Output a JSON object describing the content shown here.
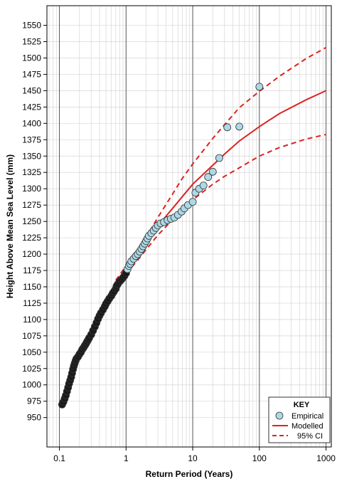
{
  "chart_data": {
    "type": "scatter",
    "xlabel": "Return Period (Years)",
    "ylabel": "Height Above Mean Sea Level (mm)",
    "x_scale": "log",
    "xlim": [
      0.065,
      1200
    ],
    "ylim": [
      905,
      1580
    ],
    "x_ticks": [
      0.1,
      1,
      10,
      100,
      1000
    ],
    "x_tick_labels": [
      "0.1",
      "1",
      "10",
      "100",
      "1000"
    ],
    "y_ticks": [
      950,
      975,
      1000,
      1025,
      1050,
      1075,
      1100,
      1125,
      1150,
      1175,
      1200,
      1225,
      1250,
      1275,
      1300,
      1325,
      1350,
      1375,
      1400,
      1425,
      1450,
      1475,
      1500,
      1525,
      1550
    ],
    "grid": true,
    "legend": {
      "title": "KEY",
      "position": "bottom-right",
      "entries": [
        {
          "label": "Empirical",
          "style": "circle",
          "color": "#add8e6"
        },
        {
          "label": "Modelled",
          "style": "solid",
          "color": "#dd2222"
        },
        {
          "label": "95% CI",
          "style": "dashed",
          "color": "#dd2222"
        }
      ]
    },
    "series": [
      {
        "name": "Empirical",
        "style": "points",
        "x": [
          0.11,
          0.115,
          0.12,
          0.125,
          0.13,
          0.135,
          0.14,
          0.145,
          0.15,
          0.155,
          0.16,
          0.165,
          0.17,
          0.175,
          0.18,
          0.19,
          0.2,
          0.21,
          0.22,
          0.23,
          0.24,
          0.25,
          0.26,
          0.27,
          0.28,
          0.3,
          0.32,
          0.34,
          0.36,
          0.38,
          0.4,
          0.42,
          0.45,
          0.48,
          0.5,
          0.53,
          0.56,
          0.6,
          0.63,
          0.66,
          0.7,
          0.72,
          0.75,
          0.8,
          0.85,
          0.9,
          0.95,
          1.0,
          1.05,
          1.1,
          1.15,
          1.2,
          1.3,
          1.4,
          1.5,
          1.6,
          1.7,
          1.8,
          1.9,
          2.0,
          2.1,
          2.2,
          2.4,
          2.6,
          2.8,
          3.0,
          3.3,
          3.7,
          4.2,
          4.7,
          5.3,
          6.0,
          6.8,
          7.5,
          8.5,
          10.0,
          11.0,
          12.5,
          14.5,
          17.0,
          20.0,
          25.0,
          33.0,
          50.0,
          100.0
        ],
        "y": [
          970,
          974,
          979,
          984,
          990,
          996,
          1002,
          1007,
          1012,
          1018,
          1024,
          1029,
          1033,
          1037,
          1040,
          1043,
          1047,
          1050,
          1054,
          1057,
          1060,
          1063,
          1066,
          1069,
          1072,
          1077,
          1083,
          1089,
          1095,
          1101,
          1106,
          1110,
          1115,
          1120,
          1124,
          1128,
          1132,
          1136,
          1140,
          1143,
          1147,
          1151,
          1154,
          1158,
          1161,
          1164,
          1167,
          1171,
          1177,
          1182,
          1185,
          1189,
          1193,
          1197,
          1200,
          1204,
          1208,
          1212,
          1216,
          1220,
          1224,
          1228,
          1232,
          1236,
          1240,
          1244,
          1247,
          1249,
          1252,
          1254,
          1256,
          1260,
          1265,
          1270,
          1275,
          1280,
          1294,
          1300,
          1305,
          1318,
          1326,
          1347,
          1394,
          1395,
          1456
        ]
      },
      {
        "name": "Modelled",
        "style": "solid",
        "x": [
          0.5,
          0.7,
          1.0,
          1.5,
          2.0,
          3.0,
          5.0,
          7.0,
          10.0,
          20.0,
          30.0,
          50.0,
          100.0,
          200.0,
          500.0,
          1000.0
        ],
        "y": [
          1128,
          1155,
          1177,
          1200,
          1218,
          1243,
          1270,
          1288,
          1307,
          1336,
          1353,
          1373,
          1395,
          1415,
          1436,
          1450
        ]
      },
      {
        "name": "95% CI upper",
        "style": "dashed",
        "x": [
          0.7,
          1.0,
          1.5,
          2.0,
          3.0,
          5.0,
          7.0,
          10.0,
          20.0,
          30.0,
          50.0,
          100.0,
          200.0,
          500.0,
          1000.0
        ],
        "y": [
          1160,
          1182,
          1206,
          1226,
          1256,
          1292,
          1316,
          1338,
          1377,
          1398,
          1424,
          1449,
          1472,
          1499,
          1516
        ]
      },
      {
        "name": "95% CI lower",
        "style": "dashed",
        "x": [
          0.7,
          1.0,
          1.5,
          2.0,
          3.0,
          5.0,
          7.0,
          10.0,
          20.0,
          30.0,
          50.0,
          100.0,
          200.0,
          500.0,
          1000.0
        ],
        "y": [
          1150,
          1170,
          1191,
          1207,
          1229,
          1253,
          1269,
          1283,
          1307,
          1319,
          1332,
          1350,
          1363,
          1376,
          1383
        ]
      }
    ]
  }
}
